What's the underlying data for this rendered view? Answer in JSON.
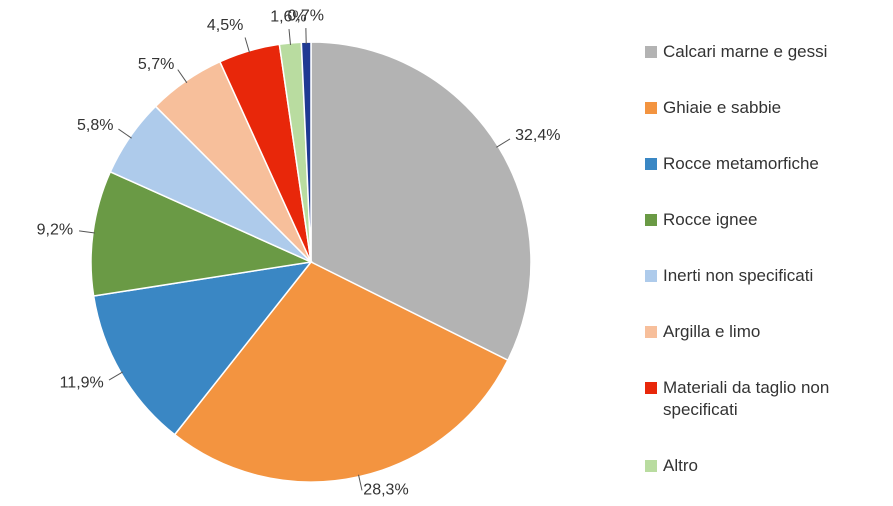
{
  "chart_data": {
    "type": "pie",
    "categories": [
      "Calcari marne e gessi",
      "Ghiaie e sabbie",
      "Rocce metamorfiche",
      "Rocce ignee",
      "Inerti non specificati",
      "Argilla e limo",
      "Materiali da taglio non specificati",
      "Altro",
      null
    ],
    "values": [
      32.4,
      28.3,
      11.9,
      9.2,
      5.8,
      5.7,
      4.5,
      1.6,
      0.7
    ],
    "value_labels": [
      "32,4%",
      "28,3%",
      "11,9%",
      "9,2%",
      "5,8%",
      "5,7%",
      "4,5%",
      "1,6%",
      "0,7%"
    ],
    "colors": [
      "#b3b3b3",
      "#f39440",
      "#3a87c4",
      "#6a9a45",
      "#aecbeb",
      "#f7bf9b",
      "#e8270a",
      "#b9dca0",
      "#1f3a93"
    ],
    "legend": "right"
  }
}
